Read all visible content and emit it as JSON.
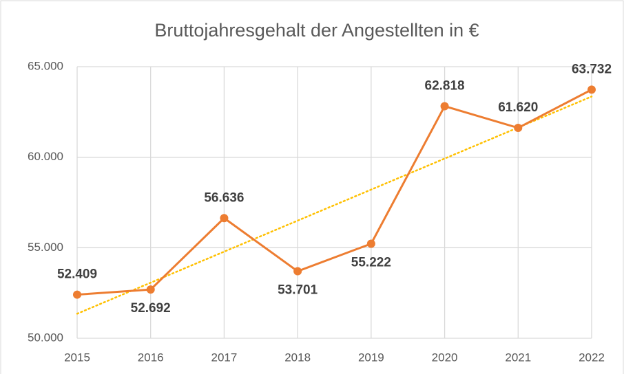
{
  "chart_data": {
    "type": "line",
    "title": "Bruttojahresgehalt der Angestellten in €",
    "categories": [
      "2015",
      "2016",
      "2017",
      "2018",
      "2019",
      "2020",
      "2021",
      "2022"
    ],
    "series": [
      {
        "name": "Bruttojahresgehalt",
        "color": "#ed7d31",
        "values": [
          52409,
          52692,
          56636,
          53701,
          55222,
          62818,
          61620,
          63732
        ],
        "value_labels": [
          "52.409",
          "52.692",
          "56.636",
          "53.701",
          "55.222",
          "62.818",
          "61.620",
          "63.732"
        ]
      }
    ],
    "ylim": [
      50000,
      65000
    ],
    "yticks": [
      {
        "value": 50000,
        "label": "50.000"
      },
      {
        "value": 55000,
        "label": "55.000"
      },
      {
        "value": 60000,
        "label": "60.000"
      },
      {
        "value": 65000,
        "label": "65.000"
      }
    ],
    "grid": true,
    "trendline": {
      "type": "linear",
      "color": "#ffc000"
    }
  }
}
